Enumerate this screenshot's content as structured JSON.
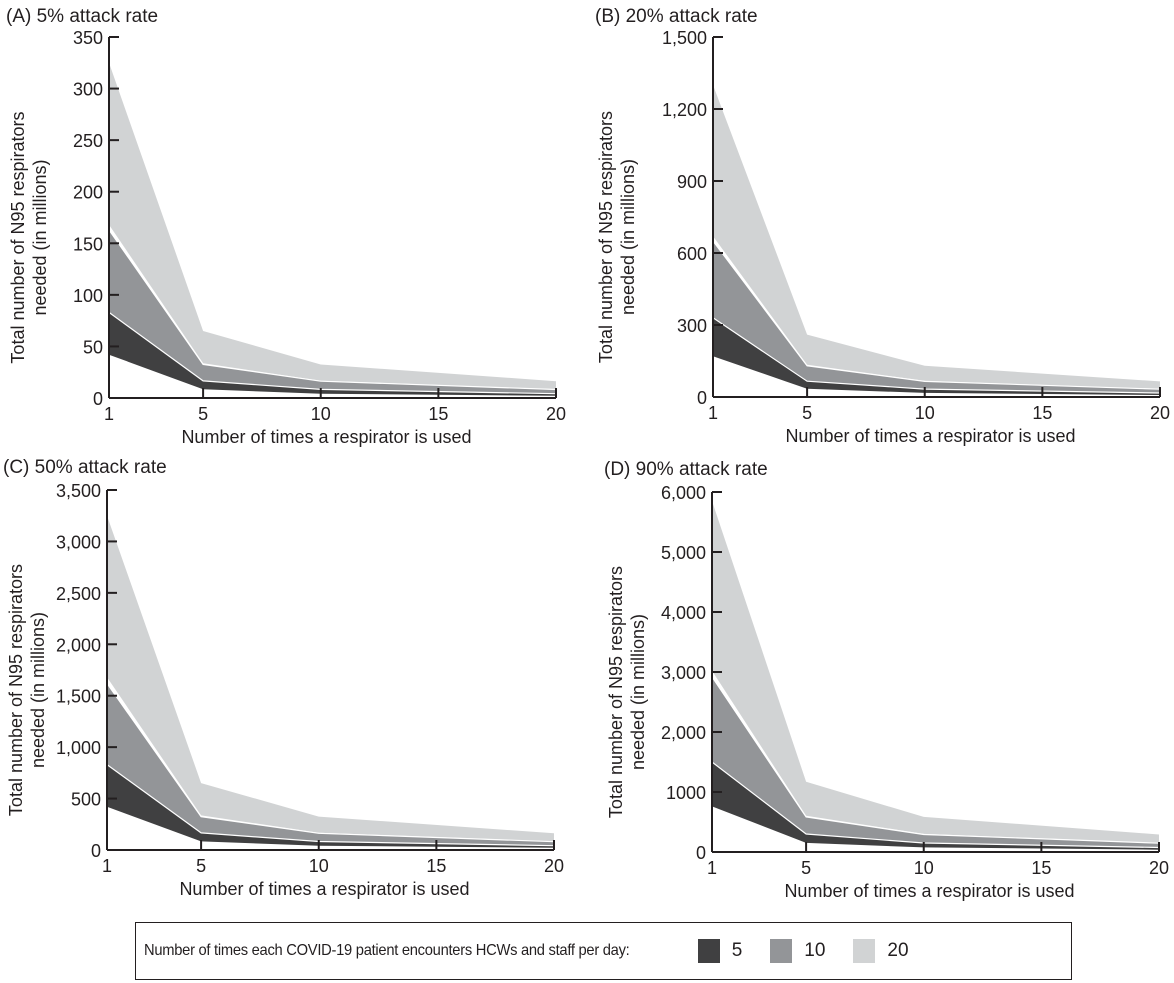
{
  "chart_data": [
    {
      "type": "area",
      "title": "(A) 5% attack rate",
      "xlabel": "Number of times a respirator is used",
      "ylabel_line1": "Total number of N95 respirators",
      "ylabel_line2": "needed (in millions)",
      "x": [
        1,
        5,
        10,
        20
      ],
      "xticks": [
        1,
        5,
        10,
        15,
        20
      ],
      "xtick_labels": [
        "1",
        "5",
        "10",
        "15",
        "20"
      ],
      "xlim": [
        1,
        20
      ],
      "ylim": [
        0,
        350
      ],
      "yticks": [
        0,
        50,
        100,
        150,
        200,
        250,
        300,
        350
      ],
      "ytick_labels": [
        "0",
        "50",
        "100",
        "150",
        "200",
        "250",
        "300",
        "350"
      ],
      "series": [
        {
          "name": "5",
          "lower": [
            42,
            8.4,
            4.2,
            2.1
          ],
          "upper": [
            83,
            16.6,
            8.3,
            4.2
          ]
        },
        {
          "name": "10",
          "lower": [
            83,
            16.6,
            8.3,
            4.2
          ],
          "upper": [
            163,
            32.6,
            16.3,
            8.2
          ]
        },
        {
          "name": "20",
          "lower": [
            168,
            33.6,
            16.8,
            8.4
          ],
          "upper": [
            325,
            65,
            32.5,
            16.3
          ]
        }
      ]
    },
    {
      "type": "area",
      "title": "(B) 20% attack rate",
      "xlabel": "Number of times a respirator is used",
      "ylabel_line1": "Total number of N95 respirators",
      "ylabel_line2": "needed (in millions)",
      "x": [
        1,
        5,
        10,
        20
      ],
      "xticks": [
        1,
        5,
        10,
        15,
        20
      ],
      "xtick_labels": [
        "1",
        "5",
        "10",
        "15",
        "20"
      ],
      "xlim": [
        1,
        20
      ],
      "ylim": [
        0,
        1500
      ],
      "yticks": [
        0,
        300,
        600,
        900,
        1200,
        1500
      ],
      "ytick_labels": [
        "0",
        "300",
        "600",
        "900",
        "1,200",
        "1,500"
      ],
      "series": [
        {
          "name": "5",
          "lower": [
            170,
            34,
            17,
            8.5
          ],
          "upper": [
            330,
            66,
            33,
            16.5
          ]
        },
        {
          "name": "10",
          "lower": [
            330,
            66,
            33,
            16.5
          ],
          "upper": [
            650,
            130,
            65,
            32.5
          ]
        },
        {
          "name": "20",
          "lower": [
            670,
            134,
            67,
            33.5
          ],
          "upper": [
            1300,
            260,
            130,
            65
          ]
        }
      ]
    },
    {
      "type": "area",
      "title": "(C) 50% attack rate",
      "xlabel": "Number of times a respirator is used",
      "ylabel_line1": "Total number of N95 respirators",
      "ylabel_line2": "needed (in millions)",
      "x": [
        1,
        5,
        10,
        20
      ],
      "xticks": [
        1,
        5,
        10,
        15,
        20
      ],
      "xtick_labels": [
        "1",
        "5",
        "10",
        "15",
        "20"
      ],
      "xlim": [
        1,
        20
      ],
      "ylim": [
        0,
        3500
      ],
      "yticks": [
        0,
        500,
        1000,
        1500,
        2000,
        2500,
        3000,
        3500
      ],
      "ytick_labels": [
        "0",
        "500",
        "1,000",
        "1,500",
        "2,000",
        "2,500",
        "3,000",
        "3,500"
      ],
      "series": [
        {
          "name": "5",
          "lower": [
            420,
            84,
            42,
            21
          ],
          "upper": [
            830,
            166,
            83,
            41.5
          ]
        },
        {
          "name": "10",
          "lower": [
            830,
            166,
            83,
            41.5
          ],
          "upper": [
            1620,
            324,
            162,
            81
          ]
        },
        {
          "name": "20",
          "lower": [
            1680,
            336,
            168,
            84
          ],
          "upper": [
            3250,
            650,
            325,
            162.5
          ]
        }
      ]
    },
    {
      "type": "area",
      "title": "(D) 90% attack rate",
      "xlabel": "Number of times a respirator is used",
      "ylabel_line1": "Total number of N95 respirators",
      "ylabel_line2": "needed (in millions)",
      "x": [
        1,
        5,
        10,
        20
      ],
      "xticks": [
        1,
        5,
        10,
        15,
        20
      ],
      "xtick_labels": [
        "1",
        "5",
        "10",
        "15",
        "20"
      ],
      "xlim": [
        1,
        20
      ],
      "ylim": [
        0,
        6000
      ],
      "yticks": [
        0,
        1000,
        2000,
        3000,
        4000,
        5000,
        6000
      ],
      "ytick_labels": [
        "0",
        "1000",
        "2,000",
        "3,000",
        "4,000",
        "5,000",
        "6,000"
      ],
      "series": [
        {
          "name": "5",
          "lower": [
            760,
            152,
            76,
            38
          ],
          "upper": [
            1500,
            300,
            150,
            75
          ]
        },
        {
          "name": "10",
          "lower": [
            1500,
            300,
            150,
            75
          ],
          "upper": [
            2920,
            584,
            292,
            146
          ]
        },
        {
          "name": "20",
          "lower": [
            3020,
            604,
            302,
            151
          ],
          "upper": [
            5850,
            1170,
            585,
            292.5
          ]
        }
      ]
    }
  ],
  "legend": {
    "title": "Number of times each COVID-19 patient encounters HCWs and staff per day:",
    "items": [
      {
        "label": "5",
        "color": "#404041"
      },
      {
        "label": "10",
        "color": "#939598"
      },
      {
        "label": "20",
        "color": "#d1d3d4"
      }
    ]
  },
  "colors": {
    "axis": "#231f20",
    "separator": "#ffffff"
  }
}
